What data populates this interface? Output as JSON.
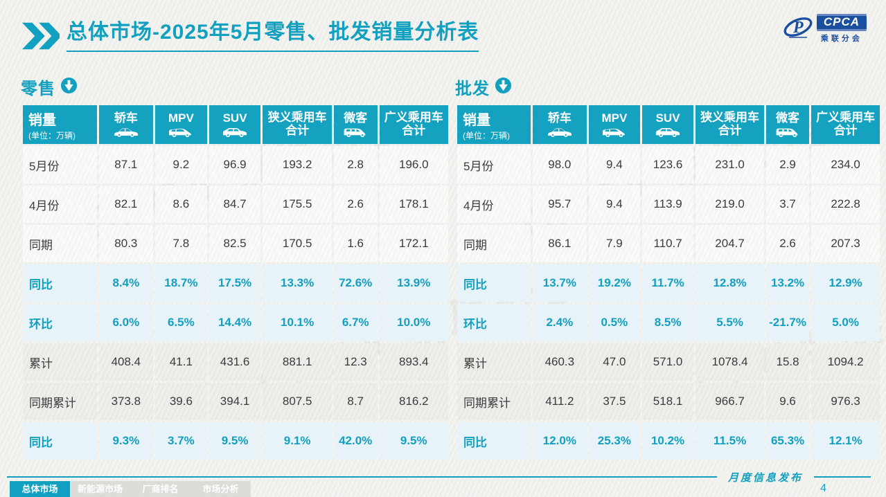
{
  "header": {
    "title": "总体市场-2025年5月零售、批发销量分析表",
    "logo": {
      "brand": "CPCA",
      "name_cn": "乘联分会"
    }
  },
  "watermark": "CPCA 乘联分会",
  "colors": {
    "accent": "#12A0C0",
    "table_header": "#14A2C0",
    "rate_row_bg": "#E8F3F9",
    "shade_row_bg": "#EEEEEB",
    "logo_blue": "#1A4E9E"
  },
  "sections": [
    {
      "heading": "零售",
      "sales_label": "销量",
      "unit": "(单位：万辆)",
      "columns": [
        {
          "label": "轿车",
          "icon": "sedan-icon"
        },
        {
          "label": "MPV",
          "icon": "mpv-icon"
        },
        {
          "label": "SUV",
          "icon": "suv-icon"
        },
        {
          "label": "狭义乘用车\n合计"
        },
        {
          "label": "微客",
          "icon": "microvan-icon"
        },
        {
          "label": "广义乘用车\n合计"
        }
      ],
      "rows": [
        {
          "label": "5月份",
          "style": "plain",
          "values": [
            "87.1",
            "9.2",
            "96.9",
            "193.2",
            "2.8",
            "196.0"
          ]
        },
        {
          "label": "4月份",
          "style": "plain",
          "values": [
            "82.1",
            "8.6",
            "84.7",
            "175.5",
            "2.6",
            "178.1"
          ]
        },
        {
          "label": "同期",
          "style": "plain",
          "values": [
            "80.3",
            "7.8",
            "82.5",
            "170.5",
            "1.6",
            "172.1"
          ]
        },
        {
          "label": "同比",
          "style": "rate",
          "values": [
            "8.4%",
            "18.7%",
            "17.5%",
            "13.3%",
            "72.6%",
            "13.9%"
          ]
        },
        {
          "label": "环比",
          "style": "rate",
          "values": [
            "6.0%",
            "6.5%",
            "14.4%",
            "10.1%",
            "6.7%",
            "10.0%"
          ]
        },
        {
          "label": "累计",
          "style": "shade",
          "values": [
            "408.4",
            "41.1",
            "431.6",
            "881.1",
            "12.3",
            "893.4"
          ]
        },
        {
          "label": "同期累计",
          "style": "shade",
          "values": [
            "373.8",
            "39.6",
            "394.1",
            "807.5",
            "8.7",
            "816.2"
          ]
        },
        {
          "label": "同比",
          "style": "rate",
          "values": [
            "9.3%",
            "3.7%",
            "9.5%",
            "9.1%",
            "42.0%",
            "9.5%"
          ]
        }
      ]
    },
    {
      "heading": "批发",
      "sales_label": "销量",
      "unit": "(单位：万辆)",
      "columns": [
        {
          "label": "轿车",
          "icon": "sedan-icon"
        },
        {
          "label": "MPV",
          "icon": "mpv-icon"
        },
        {
          "label": "SUV",
          "icon": "suv-icon"
        },
        {
          "label": "狭义乘用车\n合计"
        },
        {
          "label": "微客",
          "icon": "microvan-icon"
        },
        {
          "label": "广义乘用车\n合计"
        }
      ],
      "rows": [
        {
          "label": "5月份",
          "style": "plain",
          "values": [
            "98.0",
            "9.4",
            "123.6",
            "231.0",
            "2.9",
            "234.0"
          ]
        },
        {
          "label": "4月份",
          "style": "plain",
          "values": [
            "95.7",
            "9.4",
            "113.9",
            "219.0",
            "3.7",
            "222.8"
          ]
        },
        {
          "label": "同期",
          "style": "plain",
          "values": [
            "86.1",
            "7.9",
            "110.7",
            "204.7",
            "2.6",
            "207.3"
          ]
        },
        {
          "label": "同比",
          "style": "rate",
          "values": [
            "13.7%",
            "19.2%",
            "11.7%",
            "12.8%",
            "13.2%",
            "12.9%"
          ]
        },
        {
          "label": "环比",
          "style": "rate",
          "values": [
            "2.4%",
            "0.5%",
            "8.5%",
            "5.5%",
            "-21.7%",
            "5.0%"
          ]
        },
        {
          "label": "累计",
          "style": "shade",
          "values": [
            "460.3",
            "47.0",
            "571.0",
            "1078.4",
            "15.8",
            "1094.2"
          ]
        },
        {
          "label": "同期累计",
          "style": "shade",
          "values": [
            "411.2",
            "37.5",
            "518.1",
            "966.7",
            "9.6",
            "976.3"
          ]
        },
        {
          "label": "同比",
          "style": "rate",
          "values": [
            "12.0%",
            "25.3%",
            "10.2%",
            "11.5%",
            "65.3%",
            "12.1%"
          ]
        }
      ]
    }
  ],
  "footer": {
    "tabs": [
      {
        "label": "总体市场",
        "active": true
      },
      {
        "label": "新能源市场",
        "active": false
      },
      {
        "label": "厂商排名",
        "active": false
      },
      {
        "label": "市场分析",
        "active": false
      }
    ],
    "publish_label": "月度信息发布",
    "page_number": "4"
  }
}
